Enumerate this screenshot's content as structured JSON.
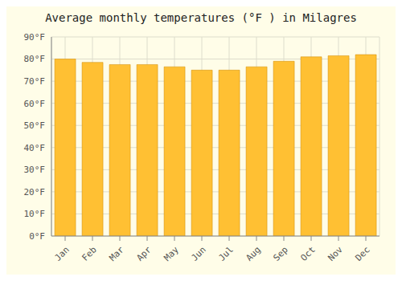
{
  "chart_data": {
    "type": "bar",
    "title": "Average monthly temperatures (°F ) in Milagres",
    "categories": [
      "Jan",
      "Feb",
      "Mar",
      "Apr",
      "May",
      "Jun",
      "Jul",
      "Aug",
      "Sep",
      "Oct",
      "Nov",
      "Dec"
    ],
    "values": [
      80,
      78.5,
      77.5,
      77.5,
      76.5,
      75,
      75,
      76.5,
      79,
      81,
      81.5,
      82
    ],
    "color": "#FFC033",
    "ylim": [
      0,
      90
    ],
    "yticks": [
      {
        "value": 0,
        "label": "0°F"
      },
      {
        "value": 10,
        "label": "10°F"
      },
      {
        "value": 20,
        "label": "20°F"
      },
      {
        "value": 30,
        "label": "30°F"
      },
      {
        "value": 40,
        "label": "40°F"
      },
      {
        "value": 50,
        "label": "50°F"
      },
      {
        "value": 60,
        "label": "60°F"
      },
      {
        "value": 70,
        "label": "70°F"
      },
      {
        "value": 80,
        "label": "80°F"
      },
      {
        "value": 90,
        "label": "90°F"
      }
    ],
    "grid": true
  }
}
